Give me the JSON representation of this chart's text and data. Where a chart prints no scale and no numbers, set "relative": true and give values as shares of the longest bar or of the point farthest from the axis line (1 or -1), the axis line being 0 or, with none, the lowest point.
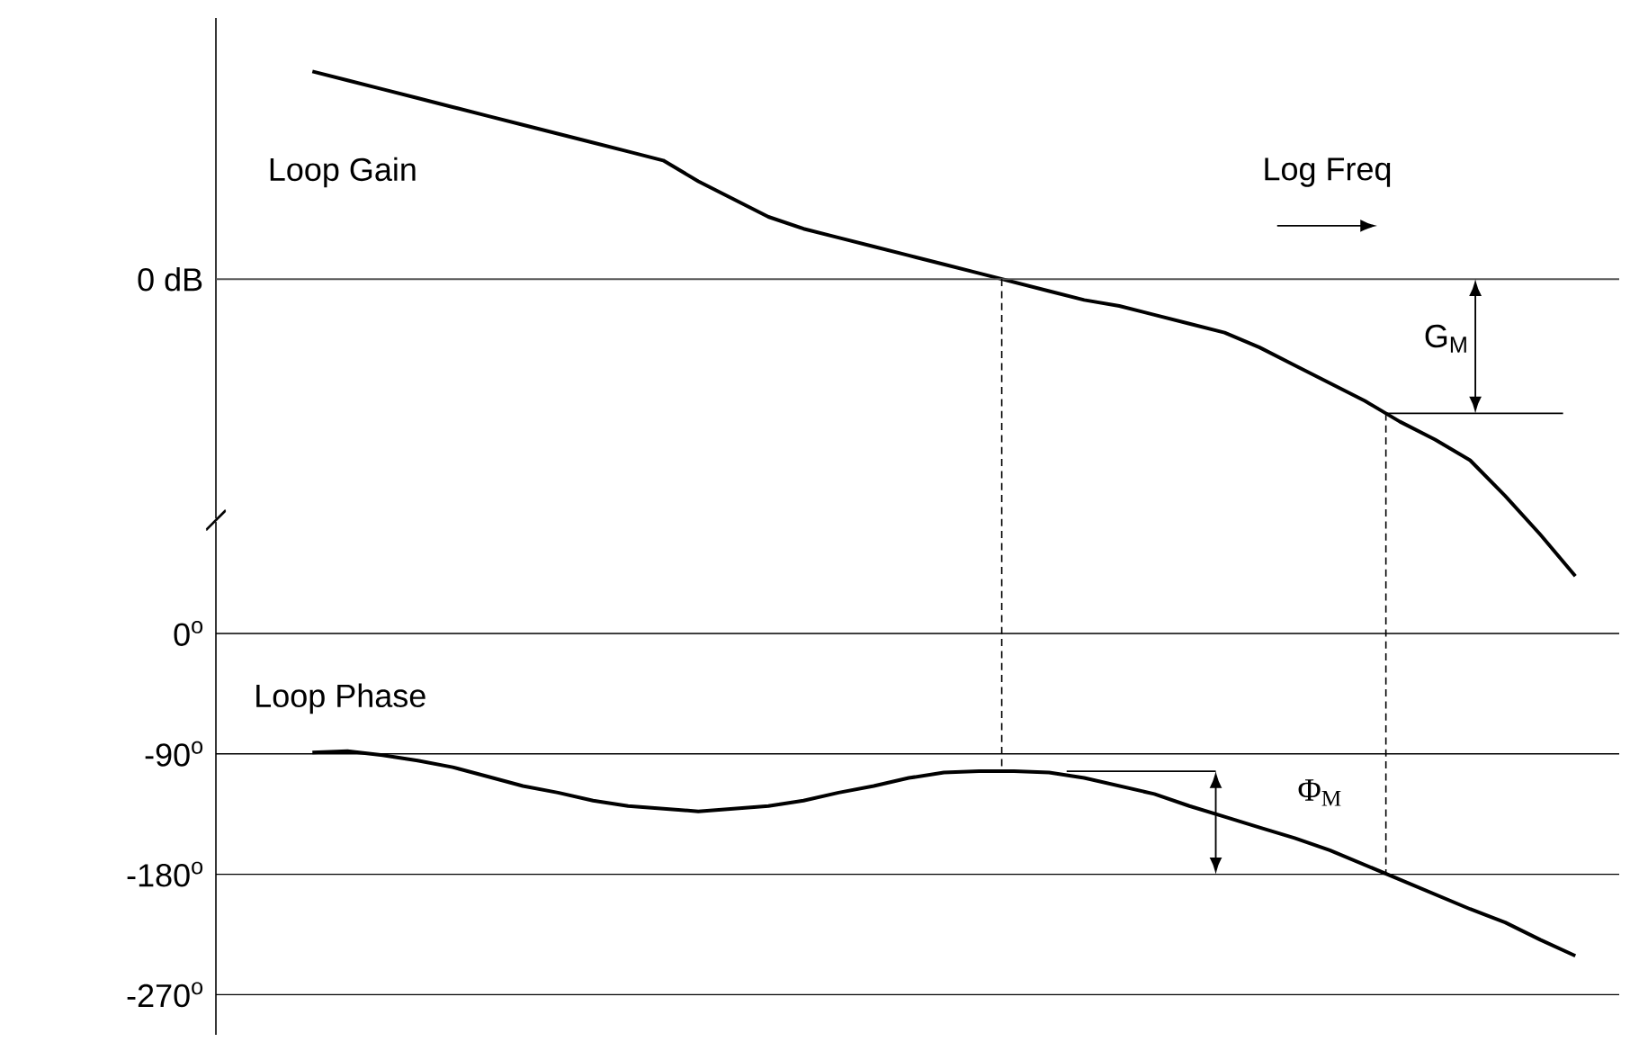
{
  "chart_data": [
    {
      "type": "line",
      "relative": true,
      "categories": [
        null,
        null,
        null,
        null,
        null,
        null,
        null,
        null,
        null,
        null,
        null,
        null,
        null,
        null,
        null,
        null,
        null,
        null,
        null,
        null,
        null,
        null,
        null,
        null,
        null,
        null,
        null,
        null,
        null,
        null,
        null,
        null,
        null,
        null,
        null,
        null,
        null
      ],
      "series": [
        {
          "color": "#000000",
          "values": [
            0.7,
            0.67,
            0.64,
            0.61,
            0.58,
            0.55,
            0.52,
            0.49,
            0.46,
            0.43,
            0.4,
            0.33,
            0.27,
            0.21,
            0.17,
            0.14,
            0.11,
            0.08,
            0.05,
            0.02,
            -0.01,
            -0.04,
            -0.07,
            -0.09,
            -0.12,
            -0.15,
            -0.18,
            -0.23,
            -0.29,
            -0.35,
            -0.41,
            -0.48,
            -0.54,
            -0.61,
            -0.73,
            -0.86,
            -1.0
          ]
        }
      ],
      "ref_lines": [
        {
          "axis": "y",
          "value": 0,
          "label": "0 dB",
          "color": "#555555"
        }
      ],
      "annotations": [
        "Loop Gain",
        "Log Freq",
        "G$_{M}$"
      ]
    },
    {
      "type": "line",
      "categories": [
        null,
        null,
        null,
        null,
        null,
        null,
        null,
        null,
        null,
        null,
        null,
        null,
        null,
        null,
        null,
        null,
        null,
        null,
        null,
        null,
        null,
        null,
        null,
        null,
        null,
        null,
        null,
        null,
        null,
        null,
        null,
        null,
        null,
        null,
        null,
        null,
        null
      ],
      "series": [
        {
          "color": "#000000",
          "values": [
            -89,
            -88,
            -91,
            -95,
            -100,
            -107,
            -114,
            -119,
            -125,
            -129,
            -131,
            -133,
            -131,
            -129,
            -125,
            -119,
            -114,
            -108,
            -104,
            -103,
            -103,
            -104,
            -108,
            -114,
            -120,
            -129,
            -137,
            -145,
            -153,
            -162,
            -173,
            -184,
            -195,
            -206,
            -216,
            -229,
            -241
          ]
        }
      ],
      "ylim": [
        -300,
        0
      ],
      "yticks": [
        {
          "value": 0,
          "label": "0$^{o}$"
        },
        {
          "value": -90,
          "label": "-90$^{o}$"
        },
        {
          "value": -180,
          "label": "-180$^{o}$"
        },
        {
          "value": -270,
          "label": "-270$^{o}$"
        }
      ],
      "grid": "y",
      "annotations": [
        "Loop Phase",
        "Φ$_{M}$"
      ]
    }
  ]
}
